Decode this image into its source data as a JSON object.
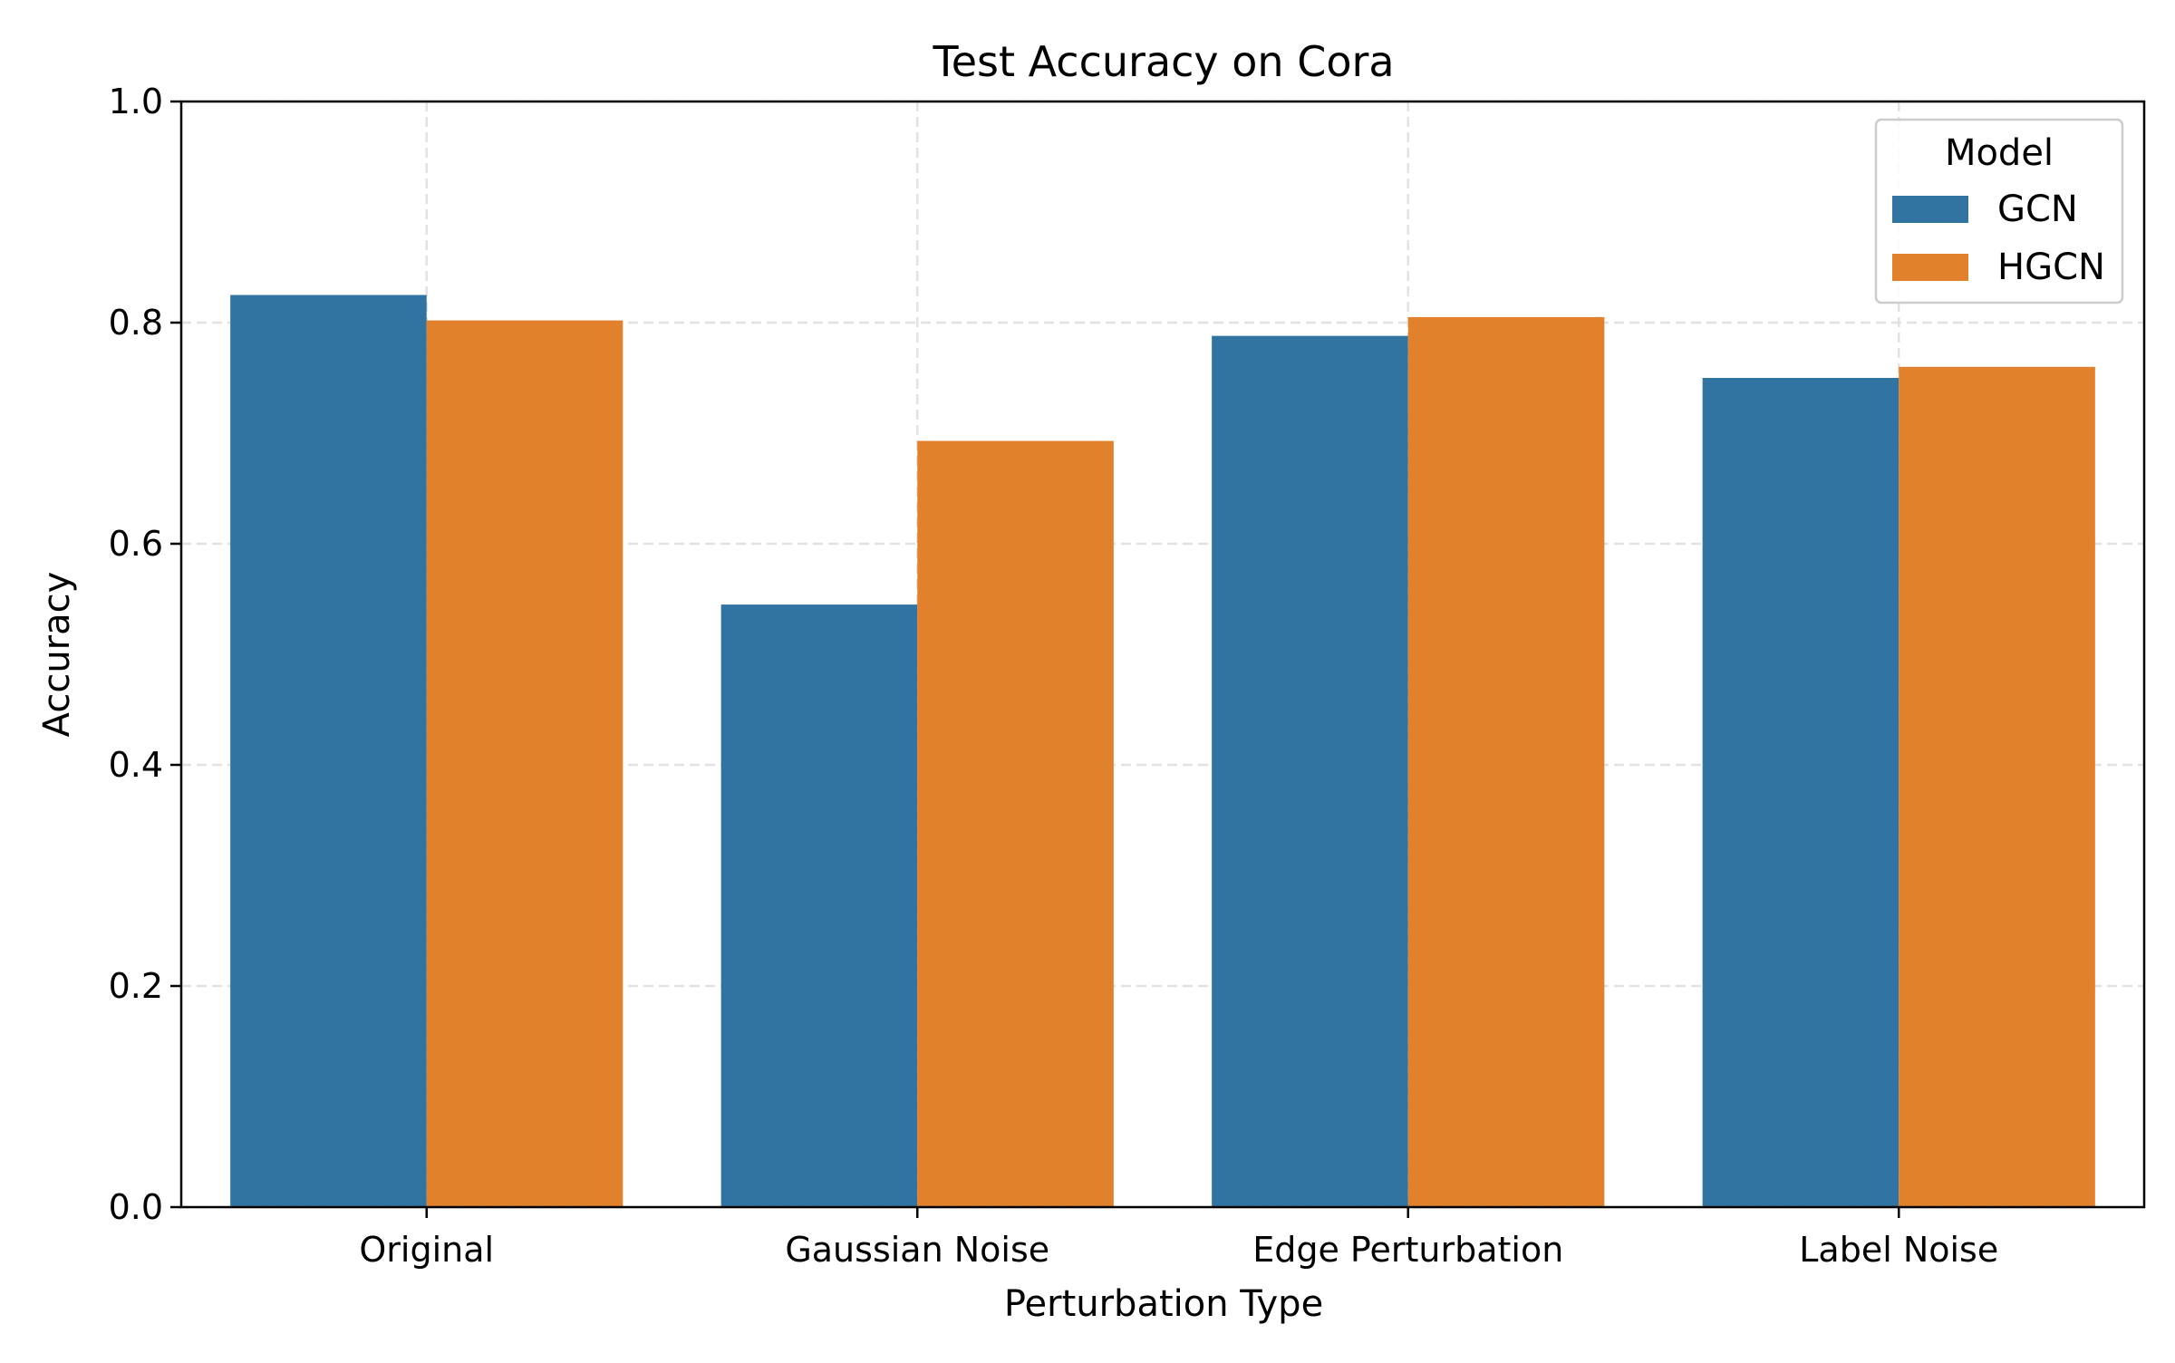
{
  "chart_data": {
    "type": "bar",
    "title": "Test Accuracy on Cora",
    "xlabel": "Perturbation Type",
    "ylabel": "Accuracy",
    "categories": [
      "Original",
      "Gaussian Noise",
      "Edge Perturbation",
      "Label Noise"
    ],
    "series": [
      {
        "name": "GCN",
        "color": "#3274a1",
        "values": [
          0.825,
          0.545,
          0.788,
          0.75
        ]
      },
      {
        "name": "HGCN",
        "color": "#e1812c",
        "values": [
          0.802,
          0.693,
          0.805,
          0.76
        ]
      }
    ],
    "ylim": [
      0,
      1.0
    ],
    "yticks": [
      "0.0",
      "0.2",
      "0.4",
      "0.6",
      "0.8",
      "1.0"
    ],
    "grid": true,
    "legend": {
      "title": "Model",
      "placement": "top-right"
    }
  }
}
